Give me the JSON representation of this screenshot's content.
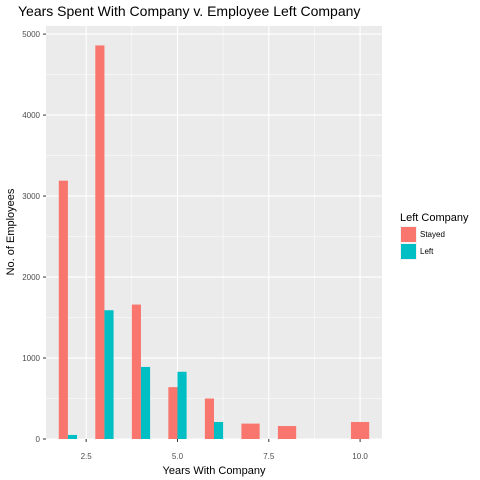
{
  "chart_data": {
    "type": "bar",
    "title": "Years Spent With Company v. Employee Left Company",
    "xlabel": "Years With Company",
    "ylabel": "No. of Employees",
    "x_ticks": [
      "2.5",
      "5.0",
      "7.5",
      "10.0"
    ],
    "y_ticks": [
      "0",
      "1000",
      "2000",
      "3000",
      "4000",
      "5000"
    ],
    "xlim": [
      1.4,
      10.6
    ],
    "ylim": [
      0,
      5100
    ],
    "x": [
      2,
      3,
      4,
      5,
      6,
      7,
      8,
      10
    ],
    "series": [
      {
        "name": "Stayed",
        "color": "#F8766D",
        "values": [
          3190,
          4860,
          1660,
          640,
          500,
          190,
          160,
          210
        ]
      },
      {
        "name": "Left",
        "color": "#00BFC4",
        "values": [
          50,
          1590,
          890,
          830,
          210,
          null,
          null,
          null
        ]
      }
    ],
    "legend": {
      "title": "Left Company",
      "position": "right"
    },
    "grid": true,
    "panel_color": "#EBEBEB"
  }
}
